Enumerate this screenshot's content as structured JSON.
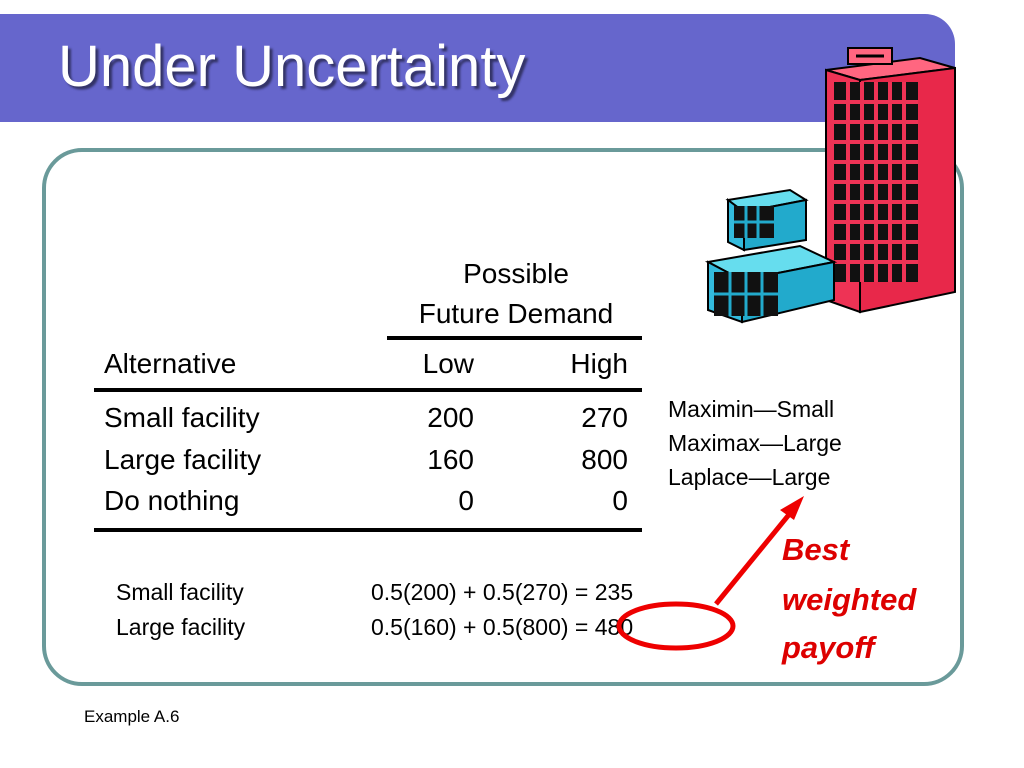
{
  "slide": {
    "title": "Under Uncertainty",
    "footer": "Example A.6"
  },
  "table": {
    "group_header": [
      "Possible",
      "Future Demand"
    ],
    "columns": [
      "Alternative",
      "Low",
      "High"
    ],
    "rows": [
      {
        "alternative": "Small facility",
        "low": "200",
        "high": "270"
      },
      {
        "alternative": "Large facility",
        "low": "160",
        "high": "800"
      },
      {
        "alternative": "Do nothing",
        "low": "0",
        "high": "0"
      }
    ]
  },
  "criteria": [
    "Maximin—Small",
    "Maximax—Large",
    "Laplace—Large"
  ],
  "calculations": [
    {
      "label": "Small facility",
      "formula": "0.5(200) + 0.5(270) = 235"
    },
    {
      "label": "Large facility",
      "formula": "0.5(160) + 0.5(800) = 480"
    }
  ],
  "annotation": {
    "lines": [
      "Best",
      "weighted",
      "payoff"
    ],
    "color": "#dd0000"
  },
  "colors": {
    "title_bar": "#6666cc",
    "panel_border": "#6a9a9a"
  },
  "icons": {
    "decoration": "office-buildings-icon"
  }
}
